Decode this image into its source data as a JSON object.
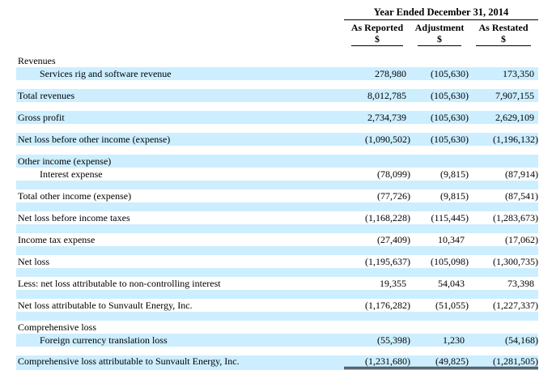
{
  "header": {
    "title": "Year Ended December 31, 2014",
    "columns": [
      {
        "label": "As Reported",
        "unit": "$"
      },
      {
        "label": "Adjustment",
        "unit": "$"
      },
      {
        "label": "As Restated",
        "unit": "$"
      }
    ]
  },
  "colors": {
    "row_highlight": "#CCEEFF",
    "text": "#000000"
  },
  "rows": [
    {
      "label": "Revenues",
      "section": true
    },
    {
      "label": "Services rig and software revenue",
      "indent": true,
      "values": [
        "278,980",
        "(105,630)",
        "173,350"
      ]
    },
    {
      "spacer": true
    },
    {
      "label": "Total revenues",
      "values": [
        "8,012,785",
        "(105,630)",
        "7,907,155"
      ]
    },
    {
      "spacer": true
    },
    {
      "label": "Gross profit",
      "values": [
        "2,734,739",
        "(105,630)",
        "2,629,109"
      ]
    },
    {
      "spacer": true
    },
    {
      "label": "Net loss before other income (expense)",
      "values": [
        "(1,090,502)",
        "(105,630)",
        "(1,196,132)"
      ]
    },
    {
      "spacer": true
    },
    {
      "label": "Other income (expense)",
      "section": true
    },
    {
      "label": "Interest expense",
      "indent": true,
      "values": [
        "(78,099)",
        "(9,815)",
        "(87,914)"
      ]
    },
    {
      "spacer": true
    },
    {
      "label": "Total other income (expense)",
      "values": [
        "(77,726)",
        "(9,815)",
        "(87,541)"
      ]
    },
    {
      "spacer": true
    },
    {
      "label": "Net loss before income taxes",
      "values": [
        "(1,168,228)",
        "(115,445)",
        "(1,283,673)"
      ]
    },
    {
      "spacer": true
    },
    {
      "label": "Income tax expense",
      "values": [
        "(27,409)",
        "10,347",
        "(17,062)"
      ]
    },
    {
      "spacer": true
    },
    {
      "label": "Net loss",
      "values": [
        "(1,195,637)",
        "(105,098)",
        "(1,300,735)"
      ]
    },
    {
      "spacer": true
    },
    {
      "label": "Less: net loss attributable to non-controlling interest",
      "values": [
        "19,355",
        "54,043",
        "73,398"
      ]
    },
    {
      "spacer": true
    },
    {
      "label": "Net loss attributable to Sunvault Energy, Inc.",
      "values": [
        "(1,176,282)",
        "(51,055)",
        "(1,227,337)"
      ]
    },
    {
      "spacer": true
    },
    {
      "label": "Comprehensive loss",
      "section": true
    },
    {
      "label": "Foreign currency translation loss",
      "indent": true,
      "values": [
        "(55,398)",
        "1,230",
        "(54,168)"
      ]
    },
    {
      "spacer": true
    },
    {
      "label": "Comprehensive loss attributable to Sunvault Energy, Inc.",
      "total": true,
      "values": [
        "(1,231,680)",
        "(49,825)",
        "(1,281,505)"
      ]
    }
  ]
}
